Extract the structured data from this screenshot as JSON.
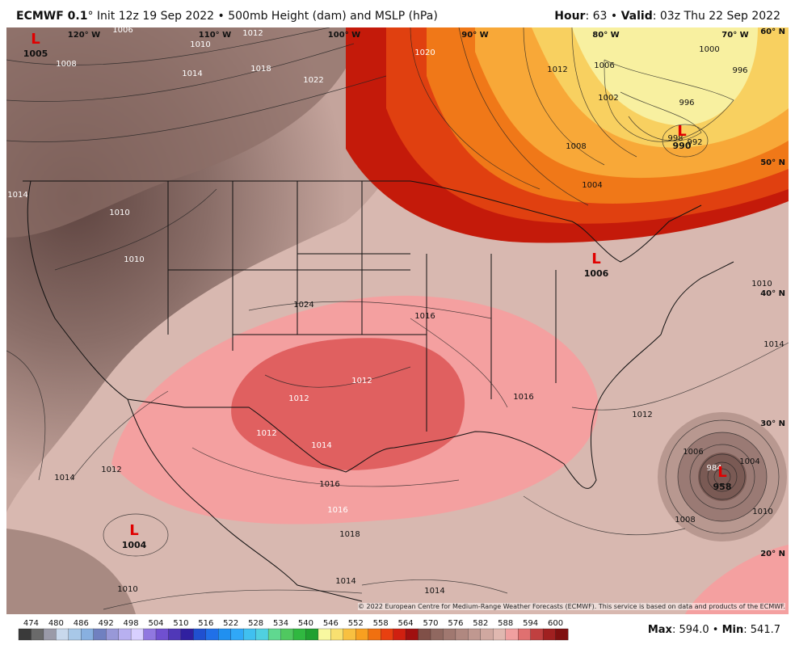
{
  "header": {
    "model": "ECMWF 0.1",
    "info": "° Init 12z 19 Sep 2022 • 500mb Height (dam) and MSLP (hPa)",
    "hour_label": "Hour",
    "hour": ": 63 • ",
    "valid_label": "Valid",
    "valid": ": 03z Thu 22 Sep 2022"
  },
  "map": {
    "latitudes": [
      "60° N",
      "50° N",
      "40° N",
      "30° N",
      "20° N"
    ],
    "longitudes": [
      "120° W",
      "110° W",
      "100° W",
      "90° W",
      "80° W",
      "70° W"
    ],
    "lows": [
      {
        "symbol": "L",
        "pressure": "1005"
      },
      {
        "symbol": "L",
        "pressure": "990"
      },
      {
        "symbol": "L",
        "pressure": "1006"
      },
      {
        "symbol": "L",
        "pressure": "1004"
      },
      {
        "symbol": "L",
        "pressure": "958"
      }
    ],
    "isobar_labels": [
      "1006",
      "1008",
      "1010",
      "1012",
      "1014",
      "1018",
      "1022",
      "1020",
      "1012",
      "1006",
      "1002",
      "1008",
      "1004",
      "1000",
      "996",
      "996",
      "998",
      "992",
      "1010",
      "1010",
      "1016",
      "1024",
      "1016",
      "1012",
      "1012",
      "1012",
      "1014",
      "1016",
      "1016",
      "1012",
      "1014",
      "1012",
      "1014",
      "1014",
      "1010",
      "1006",
      "984",
      "1004",
      "1010",
      "1008",
      "1018",
      "1014",
      "1014",
      "1010"
    ],
    "copyright": "© 2022 European Centre for Medium-Range Weather Forecasts (ECMWF). This service is based on data and products of the ECMWF."
  },
  "colorbar": {
    "ticks": [
      "474",
      "480",
      "486",
      "492",
      "498",
      "504",
      "510",
      "516",
      "522",
      "528",
      "534",
      "540",
      "546",
      "552",
      "558",
      "564",
      "570",
      "576",
      "582",
      "588",
      "594",
      "600"
    ],
    "colors": [
      "#3a3a3a",
      "#6a6a6a",
      "#9a9aa8",
      "#c8d8ec",
      "#a8c8e8",
      "#88b0e0",
      "#7080c0",
      "#9898d8",
      "#b8b0f0",
      "#d8d0ff",
      "#9078e0",
      "#7050d0",
      "#5038b8",
      "#3020a0",
      "#2050d0",
      "#2070e8",
      "#2090f0",
      "#30a8f8",
      "#40c0f0",
      "#50d0e0",
      "#60d890",
      "#50c860",
      "#30b840",
      "#20a030",
      "#f8f8a0",
      "#f8e070",
      "#f8c040",
      "#f8a020",
      "#f07010",
      "#e84010",
      "#d02010",
      "#a01010",
      "#805048",
      "#906860",
      "#a07870",
      "#b08880",
      "#c09890",
      "#d0a8a0",
      "#e0b8b0",
      "#f0a0a0",
      "#e07070",
      "#c04040",
      "#a02020",
      "#801010"
    ]
  },
  "footer": {
    "max_label": "Max",
    "max": ": 594.0 • ",
    "min_label": "Min",
    "min": ": 541.7"
  }
}
